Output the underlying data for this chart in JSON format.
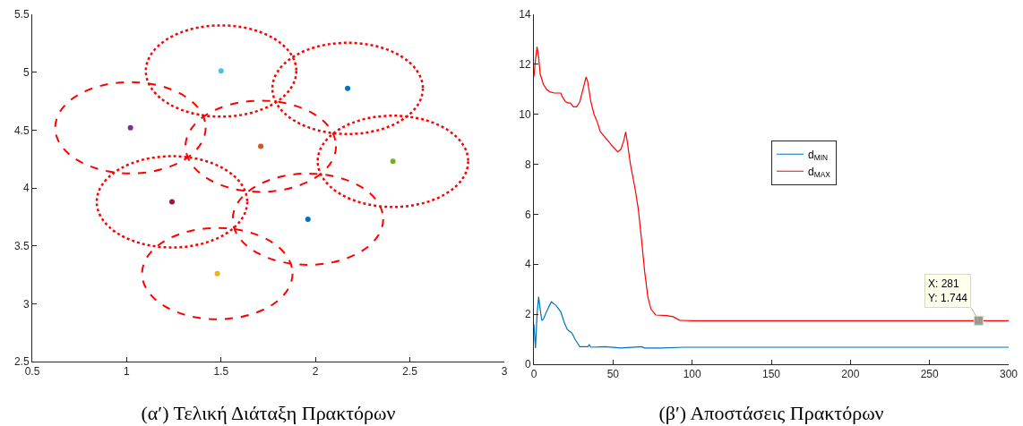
{
  "chart_data": [
    {
      "type": "scatter",
      "title": "(α′) Τελική Διάταξη Πρακτόρων",
      "xlim": [
        0.5,
        3
      ],
      "xticks": [
        0.5,
        1,
        1.5,
        2,
        2.5,
        3
      ],
      "ylim": [
        2.5,
        5.5
      ],
      "yticks": [
        2.5,
        3,
        3.5,
        4,
        4.5,
        5,
        5.5
      ],
      "marker": "circle",
      "x": [
        1.02,
        1.5,
        2.17,
        1.71,
        2.41,
        1.24,
        1.96,
        1.48
      ],
      "values": [
        4.52,
        5.01,
        4.86,
        4.36,
        4.23,
        3.88,
        3.73,
        3.26
      ],
      "colors": [
        "#7e2f8e",
        "#4dbeee",
        "#0072bd",
        "#d95319",
        "#77ac30",
        "#a2142f",
        "#0072bd",
        "#edb120"
      ]
    },
    {
      "type": "line",
      "title": "(β′) Αποστάσεις Πρακτόρων",
      "xlim": [
        0,
        300
      ],
      "xticks": [
        0,
        50,
        100,
        150,
        200,
        250,
        300
      ],
      "ylim": [
        0,
        14
      ],
      "yticks": [
        0,
        2,
        4,
        6,
        8,
        10,
        12,
        14
      ],
      "legend": "center",
      "line_style": "solid",
      "annotations": [
        {
          "text": "X: 281\nY: 1.744",
          "x": 281,
          "y": 1.744
        }
      ],
      "series": [
        {
          "name": "d$_{MIN}$",
          "color": "#0072bd",
          "x": [
            0,
            1,
            2,
            3,
            4,
            5,
            6,
            8,
            11,
            14,
            17,
            19,
            21,
            23,
            24,
            26,
            29,
            34,
            35,
            36,
            45,
            55,
            68,
            70,
            80,
            95,
            300
          ],
          "values": [
            1.6,
            0.65,
            2.0,
            2.7,
            2.2,
            1.75,
            1.8,
            2.1,
            2.5,
            2.35,
            2.1,
            1.7,
            1.4,
            1.3,
            1.25,
            1.0,
            0.7,
            0.7,
            0.78,
            0.68,
            0.7,
            0.65,
            0.7,
            0.65,
            0.65,
            0.68,
            0.68
          ]
        },
        {
          "name": "d$_{MAX}$",
          "color": "#ff0000",
          "x": [
            0,
            1,
            2,
            3,
            4,
            6,
            8,
            10,
            13,
            17,
            18,
            20,
            22,
            23,
            25,
            27,
            29,
            31,
            33,
            34,
            36,
            38,
            40,
            42,
            46,
            50,
            53,
            55,
            57,
            58,
            59,
            61,
            64,
            66,
            68,
            70,
            72,
            74,
            77,
            84,
            88,
            92,
            100,
            300
          ],
          "values": [
            11.5,
            12.2,
            12.7,
            12.3,
            11.6,
            11.2,
            11.0,
            10.9,
            10.85,
            10.85,
            10.7,
            10.5,
            10.45,
            10.45,
            10.3,
            10.3,
            10.5,
            11.0,
            11.5,
            11.3,
            10.5,
            10.0,
            9.7,
            9.3,
            9.0,
            8.7,
            8.5,
            8.6,
            9.0,
            9.3,
            8.9,
            8.0,
            7.0,
            6.2,
            5.0,
            3.7,
            2.7,
            2.2,
            1.97,
            1.95,
            1.9,
            1.76,
            1.74,
            1.74
          ]
        }
      ]
    }
  ]
}
